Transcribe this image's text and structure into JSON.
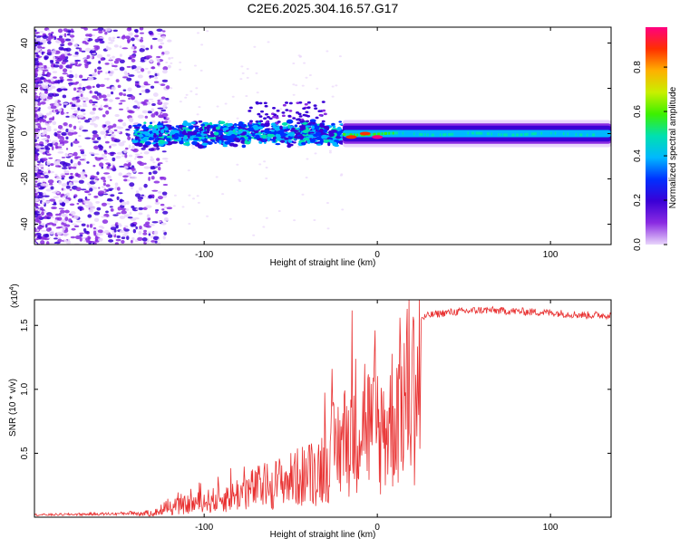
{
  "chart_data": [
    {
      "type": "heatmap",
      "title": "C2E6.2025.304.16.57.G17",
      "xlabel": "Height of straight line (km)",
      "ylabel": "Frequency (Hz)",
      "xlim": [
        -198,
        135
      ],
      "ylim": [
        -49,
        47
      ],
      "xticks": [
        -100,
        0,
        100
      ],
      "yticks": [
        -40,
        -20,
        0,
        20,
        40
      ],
      "colorbar": {
        "label": "Normalized spectral amplitude",
        "range": [
          0,
          0.98
        ],
        "ticks": [
          0.0,
          0.2,
          0.4,
          0.6,
          0.8
        ],
        "colors": [
          "#e9d6fb",
          "#8a2be2",
          "#3a00d6",
          "#0030ff",
          "#00b8ff",
          "#00e0b0",
          "#3cf000",
          "#c8f000",
          "#ffb000",
          "#ff3000",
          "#ff0080"
        ]
      },
      "band": {
        "scatter_start_km": -140,
        "wide_band_start_km": -20,
        "center_freq_hz": 0,
        "half_width_hz": 2.5,
        "note_features": [
          {
            "x": -15,
            "y": -1.5,
            "amp": 0.9
          },
          {
            "x": -7,
            "y": 0,
            "amp": 0.9
          },
          {
            "x": 0,
            "y": -1.5,
            "amp": 0.95
          }
        ]
      }
    },
    {
      "type": "line",
      "title": "",
      "xlabel": "Height of straight line (km)",
      "ylabel": "SNR (10 * v/v)",
      "y_scale_note": "(x10",
      "y_scale_exp": "4",
      "xlim": [
        -198,
        135
      ],
      "ylim": [
        0,
        1.7
      ],
      "xticks": [
        -100,
        0,
        100
      ],
      "yticks": [
        0.5,
        1.0,
        1.5
      ],
      "series": [
        {
          "name": "SNR",
          "color": "#e83030",
          "envelope_x": [
            -198,
            -150,
            -130,
            -110,
            -90,
            -70,
            -50,
            -35,
            -25,
            -18,
            -12,
            -8,
            -4,
            0,
            5,
            10,
            15,
            20,
            25,
            30,
            40,
            60,
            80,
            100,
            120,
            135
          ],
          "envelope_y": [
            0.02,
            0.03,
            0.05,
            0.15,
            0.22,
            0.35,
            0.45,
            0.55,
            0.8,
            0.95,
            1.15,
            1.25,
            1.05,
            0.95,
            1.1,
            1.25,
            1.45,
            1.5,
            1.55,
            1.58,
            1.6,
            1.62,
            1.61,
            1.6,
            1.58,
            1.58
          ]
        }
      ]
    }
  ]
}
